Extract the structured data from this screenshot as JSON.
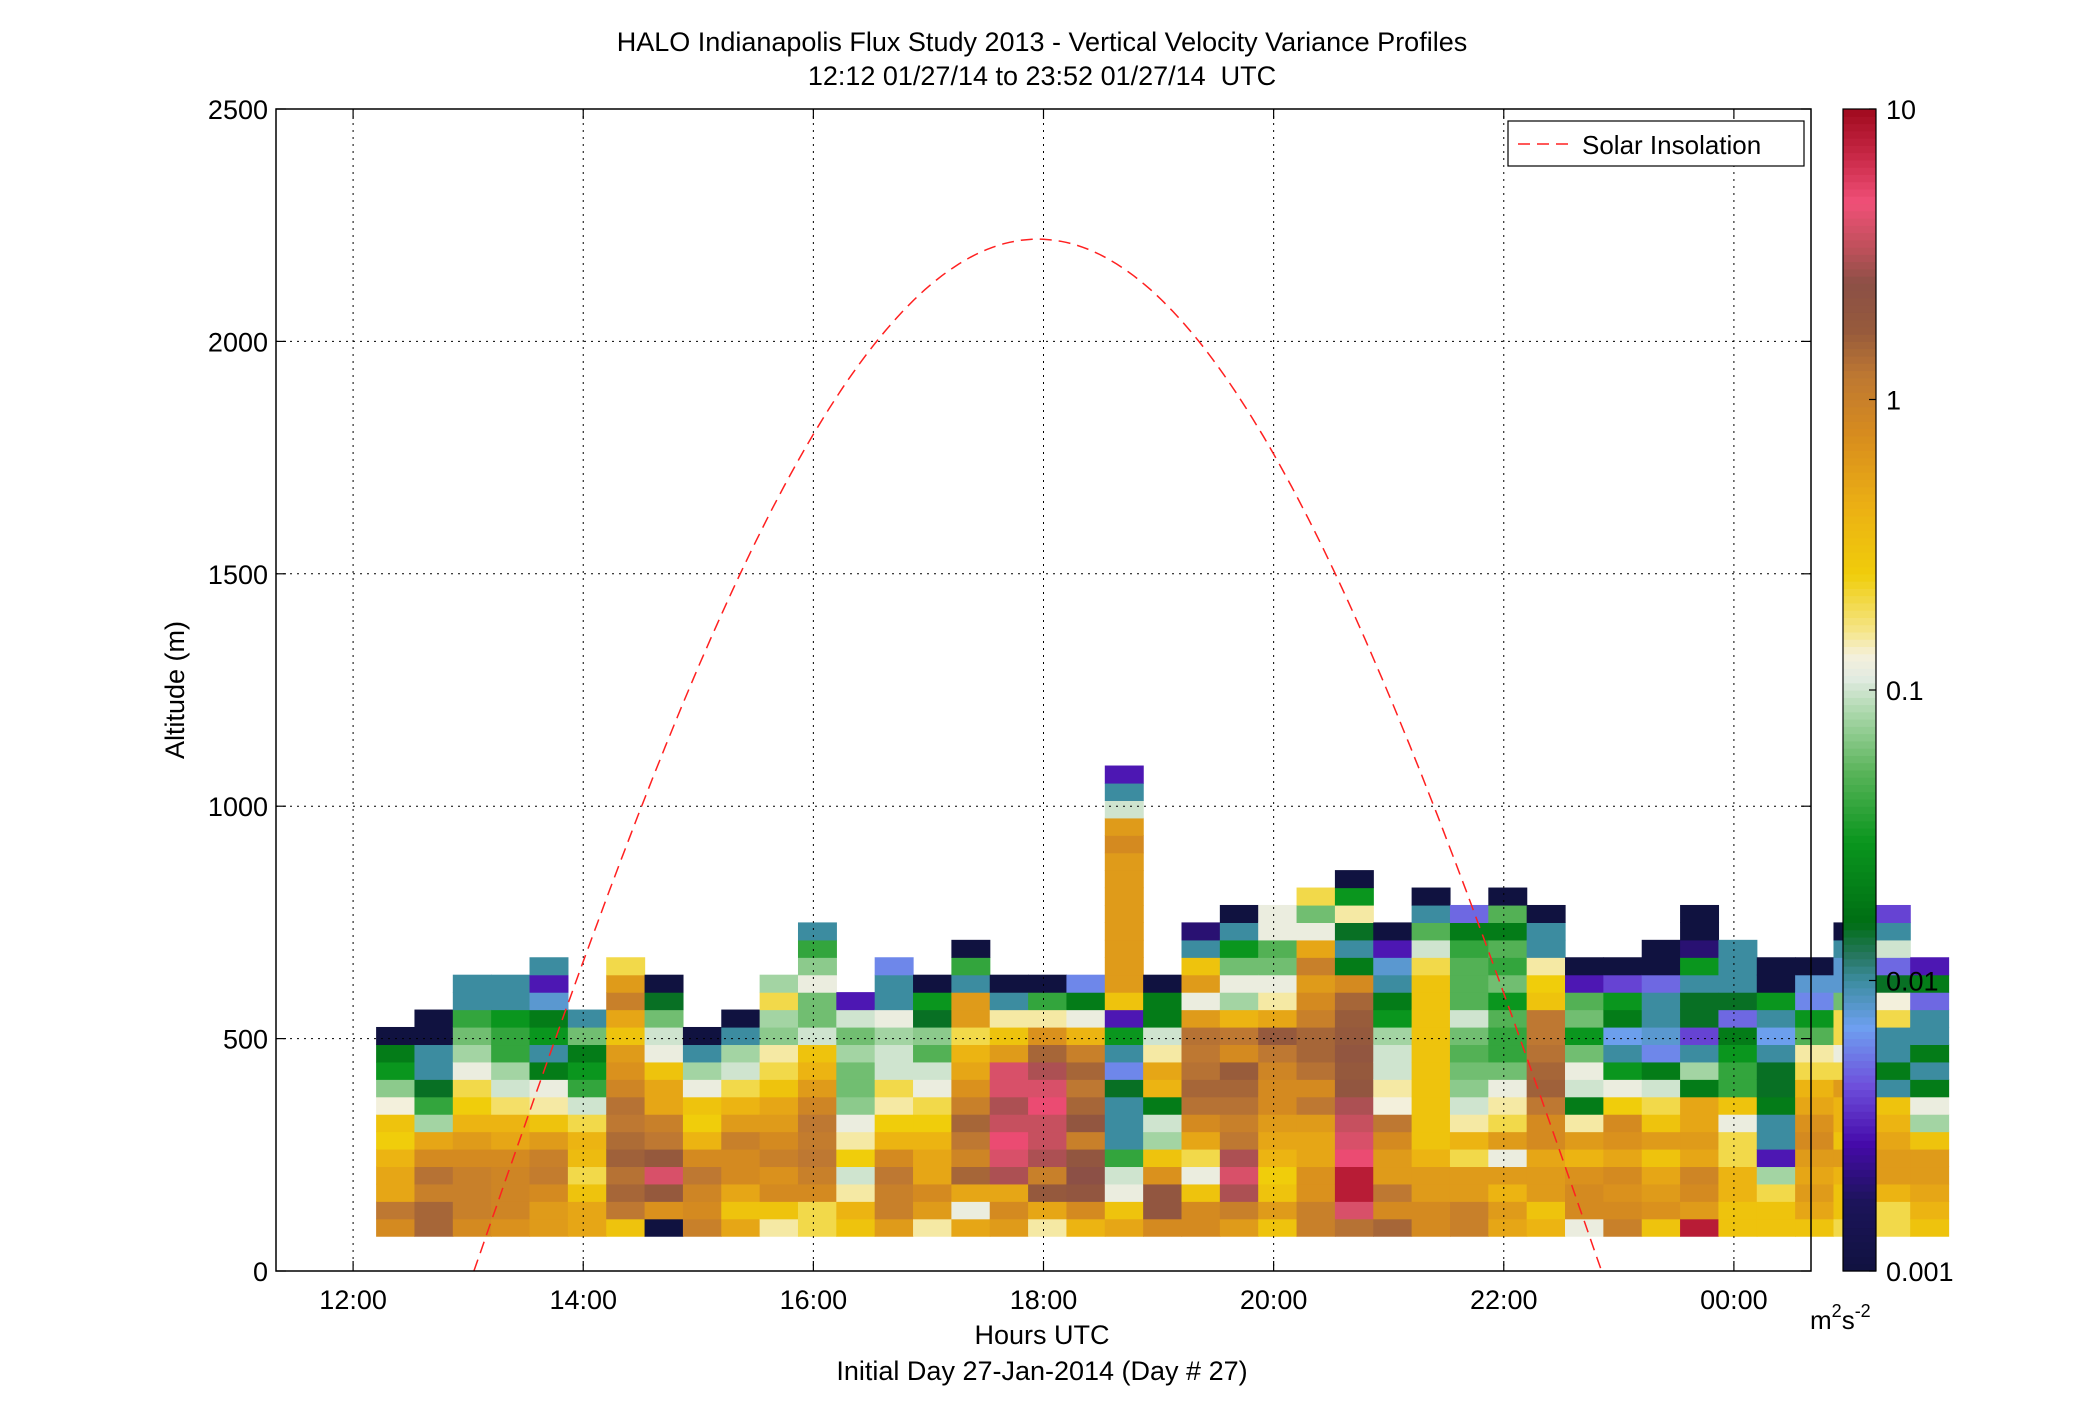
{
  "chart_data": {
    "type": "heatmap",
    "title": "HALO Indianapolis Flux Study 2013 - Vertical Velocity Variance Profiles",
    "subtitle": "12:12 01/27/14 to 23:52 01/27/14  UTC",
    "xlabel": "Hours UTC",
    "xlabel2": "Initial Day 27-Jan-2014 (Day # 27)",
    "ylabel": "Altitude (m)",
    "colorbar_label": "m²s⁻²",
    "colorbar_label_base": "m",
    "colorbar_label_sup1": "2",
    "colorbar_label_mid": "s",
    "colorbar_label_sup2": "-2",
    "x_range_hours": [
      11.33,
      24.67
    ],
    "ylim": [
      0,
      2500
    ],
    "x_ticks": [
      {
        "h": 12,
        "label": "12:00"
      },
      {
        "h": 14,
        "label": "14:00"
      },
      {
        "h": 16,
        "label": "16:00"
      },
      {
        "h": 18,
        "label": "18:00"
      },
      {
        "h": 20,
        "label": "20:00"
      },
      {
        "h": 22,
        "label": "22:00"
      },
      {
        "h": 24,
        "label": "00:00"
      }
    ],
    "y_ticks": [
      0,
      500,
      1000,
      1500,
      2000,
      2500
    ],
    "grid": true,
    "color_scale": "log",
    "color_range": [
      0.001,
      10
    ],
    "colorbar_ticks": [
      {
        "v": 0.001,
        "label": "0.001"
      },
      {
        "v": 0.01,
        "label": "0.01"
      },
      {
        "v": 0.1,
        "label": "0.1"
      },
      {
        "v": 1,
        "label": "1"
      },
      {
        "v": 10,
        "label": "10"
      }
    ],
    "legend": {
      "label": "Solar Insolation",
      "position": "top-right",
      "color": "#ff2020"
    },
    "solar_curve": {
      "rise_hour": 13.05,
      "set_hour": 22.85,
      "peak_hour": 18.0,
      "peak_altitude": 2220
    },
    "profile_start_hour": 12.2,
    "profile_step_hour": 0.3333,
    "altitude_start": 75,
    "altitude_step": 37.5,
    "profiles": [
      [
        0.8,
        1.2,
        0.5,
        0.5,
        0.4,
        0.25,
        0.3,
        0.13,
        0.07,
        0.03,
        0.02,
        0.001
      ],
      [
        1.5,
        1.5,
        1.0,
        1.3,
        0.8,
        0.5,
        0.08,
        0.04,
        0.015,
        0.01,
        0.01,
        0.001,
        0.001
      ],
      [
        0.8,
        1.0,
        1.0,
        1.0,
        0.8,
        0.6,
        0.4,
        0.25,
        0.2,
        0.12,
        0.08,
        0.06,
        0.04,
        0.01,
        0.01
      ],
      [
        0.7,
        0.9,
        0.9,
        0.9,
        0.8,
        0.5,
        0.4,
        0.18,
        0.1,
        0.08,
        0.04,
        0.04,
        0.03,
        0.01,
        0.01
      ],
      [
        0.6,
        0.6,
        0.8,
        1.1,
        1.0,
        0.6,
        0.3,
        0.15,
        0.12,
        0.02,
        0.01,
        0.03,
        0.02,
        0.008,
        0.003,
        0.01
      ],
      [
        0.5,
        0.5,
        0.3,
        0.2,
        0.35,
        0.4,
        0.2,
        0.1,
        0.04,
        0.03,
        0.02,
        0.06,
        0.01
      ],
      [
        0.3,
        1.2,
        1.5,
        1.3,
        1.6,
        1.4,
        1.2,
        1.3,
        0.9,
        0.7,
        0.6,
        0.3,
        0.5,
        1.0,
        0.6,
        0.2
      ],
      [
        0.001,
        0.7,
        1.8,
        4.0,
        1.8,
        1.2,
        1.0,
        0.5,
        0.5,
        0.3,
        0.12,
        0.1,
        0.06,
        0.015,
        0.001
      ],
      [
        1.0,
        0.8,
        0.9,
        1.2,
        0.8,
        0.4,
        0.25,
        0.3,
        0.12,
        0.08,
        0.01,
        0.001
      ],
      [
        0.5,
        0.3,
        0.5,
        0.8,
        0.8,
        1.0,
        0.6,
        0.4,
        0.2,
        0.1,
        0.08,
        0.01,
        0.001
      ],
      [
        0.15,
        0.3,
        0.8,
        0.7,
        1.0,
        0.8,
        0.6,
        0.5,
        0.3,
        0.2,
        0.15,
        0.07,
        0.08,
        0.2,
        0.08
      ],
      [
        0.2,
        0.2,
        0.8,
        1.0,
        1.2,
        1.1,
        1.2,
        0.9,
        0.6,
        0.4,
        0.3,
        0.1,
        0.06,
        0.06,
        0.12,
        0.07,
        0.04,
        0.01
      ],
      [
        0.3,
        0.4,
        0.15,
        0.1,
        0.25,
        0.15,
        0.12,
        0.07,
        0.06,
        0.06,
        0.08,
        0.06,
        0.1,
        0.003
      ],
      [
        0.6,
        1.0,
        1.0,
        1.2,
        0.8,
        0.4,
        0.25,
        0.15,
        0.2,
        0.1,
        0.1,
        0.08,
        0.12,
        0.01,
        0.01,
        0.006
      ],
      [
        0.15,
        0.6,
        0.8,
        0.5,
        0.5,
        0.4,
        0.25,
        0.2,
        0.12,
        0.1,
        0.05,
        0.07,
        0.015,
        0.03,
        0.001
      ],
      [
        0.5,
        0.12,
        0.5,
        1.5,
        0.9,
        1.2,
        1.5,
        1.0,
        0.7,
        0.5,
        0.4,
        0.2,
        0.6,
        0.6,
        0.01,
        0.04,
        0.001
      ],
      [
        0.6,
        0.8,
        0.5,
        3.0,
        4.0,
        5.0,
        3.5,
        3.0,
        4.0,
        4.0,
        0.6,
        0.3,
        0.15,
        0.01,
        0.001
      ],
      [
        0.15,
        0.5,
        1.8,
        1.0,
        3.0,
        3.5,
        3.5,
        5.0,
        4.0,
        3.0,
        1.5,
        0.7,
        0.15,
        0.04,
        0.001
      ],
      [
        0.4,
        0.8,
        2.0,
        2.5,
        2.0,
        1.0,
        2.0,
        1.5,
        1.2,
        1.5,
        1.0,
        0.4,
        0.12,
        0.02,
        0.006
      ],
      [
        0.5,
        0.3,
        0.12,
        0.1,
        0.04,
        0.01,
        0.01,
        0.01,
        0.015,
        0.006,
        0.01,
        0.03,
        0.003,
        0.3,
        0.6,
        0.6,
        0.6,
        0.6,
        0.6,
        0.6,
        0.6,
        0.6,
        0.8,
        0.6,
        0.1,
        0.01,
        0.003
      ],
      [
        0.8,
        2.0,
        2.0,
        0.7,
        0.3,
        0.08,
        0.1,
        0.02,
        0.4,
        0.5,
        0.15,
        0.1,
        0.02,
        0.02,
        0.001
      ],
      [
        0.8,
        0.8,
        0.3,
        0.12,
        0.2,
        0.5,
        0.8,
        1.3,
        1.5,
        1.3,
        1.2,
        1.3,
        0.6,
        0.12,
        0.6,
        0.3,
        0.01,
        0.002
      ],
      [
        0.6,
        1.0,
        3.0,
        4.0,
        3.0,
        1.2,
        1.0,
        1.3,
        1.5,
        1.7,
        0.8,
        1.2,
        0.4,
        0.08,
        0.12,
        0.06,
        0.03,
        0.01,
        0.001
      ],
      [
        0.3,
        0.6,
        0.3,
        0.25,
        0.4,
        0.5,
        0.6,
        0.8,
        0.8,
        0.9,
        1.2,
        1.8,
        0.5,
        0.15,
        0.12,
        0.06,
        0.05,
        0.12,
        0.12
      ],
      [
        1.0,
        1.0,
        0.7,
        0.7,
        0.5,
        0.5,
        0.6,
        1.2,
        0.8,
        1.3,
        1.5,
        1.5,
        1.0,
        0.8,
        0.6,
        1.0,
        0.5,
        0.12,
        0.06,
        0.2
      ],
      [
        1.3,
        4.0,
        8.0,
        8.0,
        5.0,
        4.0,
        3.5,
        3.0,
        2.0,
        1.8,
        2.0,
        1.8,
        1.7,
        1.5,
        0.8,
        0.02,
        0.01,
        0.015,
        0.15,
        0.03,
        0.001
      ],
      [
        1.5,
        0.8,
        1.2,
        0.6,
        0.6,
        0.8,
        1.2,
        0.13,
        0.15,
        0.1,
        0.1,
        0.08,
        0.03,
        0.02,
        0.01,
        0.008,
        0.003,
        0.001
      ],
      [
        0.8,
        0.8,
        0.6,
        0.6,
        0.4,
        0.3,
        0.3,
        0.3,
        0.3,
        0.3,
        0.3,
        0.3,
        0.3,
        0.3,
        0.3,
        0.2,
        0.1,
        0.05,
        0.01,
        0.001
      ],
      [
        1.0,
        1.0,
        0.6,
        0.6,
        0.2,
        0.4,
        0.15,
        0.1,
        0.07,
        0.06,
        0.05,
        0.06,
        0.1,
        0.05,
        0.05,
        0.05,
        0.04,
        0.02,
        0.005
      ],
      [
        0.5,
        0.6,
        0.4,
        0.6,
        0.12,
        0.6,
        0.2,
        0.15,
        0.12,
        0.06,
        0.04,
        0.04,
        0.05,
        0.03,
        0.06,
        0.04,
        0.05,
        0.02,
        0.05,
        0.001
      ],
      [
        0.4,
        0.3,
        0.6,
        0.6,
        0.5,
        0.8,
        0.8,
        1.2,
        1.6,
        1.5,
        1.3,
        1.2,
        1.2,
        0.3,
        0.25,
        0.15,
        0.01,
        0.01,
        0.001
      ],
      [
        0.12,
        0.8,
        0.8,
        0.7,
        0.4,
        0.6,
        0.15,
        0.02,
        0.1,
        0.12,
        0.06,
        0.03,
        0.06,
        0.05,
        0.003,
        0.001
      ],
      [
        1.0,
        0.8,
        0.7,
        0.8,
        0.5,
        0.7,
        0.8,
        0.25,
        0.12,
        0.03,
        0.01,
        0.007,
        0.02,
        0.03,
        0.004,
        0.001
      ],
      [
        0.3,
        0.7,
        0.6,
        0.5,
        0.3,
        0.6,
        0.3,
        0.2,
        0.1,
        0.02,
        0.006,
        0.008,
        0.01,
        0.01,
        0.005,
        0.001,
        0.001
      ],
      [
        8.0,
        0.6,
        0.8,
        0.9,
        0.5,
        0.6,
        0.5,
        0.5,
        0.02,
        0.08,
        0.01,
        0.004,
        0.015,
        0.015,
        0.01,
        0.03,
        0.002,
        0.001,
        0.001
      ],
      [
        0.3,
        0.3,
        0.4,
        0.4,
        0.2,
        0.2,
        0.12,
        0.3,
        0.04,
        0.04,
        0.03,
        0.02,
        0.005,
        0.015,
        0.01,
        0.01,
        0.01
      ],
      [
        0.3,
        0.3,
        0.2,
        0.08,
        0.003,
        0.01,
        0.01,
        0.02,
        0.015,
        0.015,
        0.01,
        0.007,
        0.01,
        0.03,
        0.001,
        0.001
      ],
      [
        0.3,
        0.5,
        0.6,
        0.5,
        0.6,
        0.8,
        0.7,
        0.5,
        0.4,
        0.2,
        0.15,
        0.05,
        0.03,
        0.006,
        0.008,
        0.001
      ],
      [
        0.2,
        0.3,
        0.3,
        0.4,
        0.6,
        0.3,
        0.4,
        0.4,
        0.6,
        0.2,
        0.12,
        0.2,
        0.2,
        0.06,
        0.008,
        0.008,
        0.01,
        0.001
      ],
      [
        0.2,
        0.2,
        0.4,
        0.6,
        0.6,
        0.5,
        0.4,
        0.3,
        0.01,
        0.02,
        0.01,
        0.01,
        0.2,
        0.13,
        0.015,
        0.005,
        0.1,
        0.01,
        0.004
      ],
      [
        0.3,
        0.4,
        0.5,
        0.6,
        0.6,
        0.3,
        0.08,
        0.12,
        0.02,
        0.01,
        0.02,
        0.01,
        0.01,
        0.005,
        0.02,
        0.003
      ]
    ]
  }
}
